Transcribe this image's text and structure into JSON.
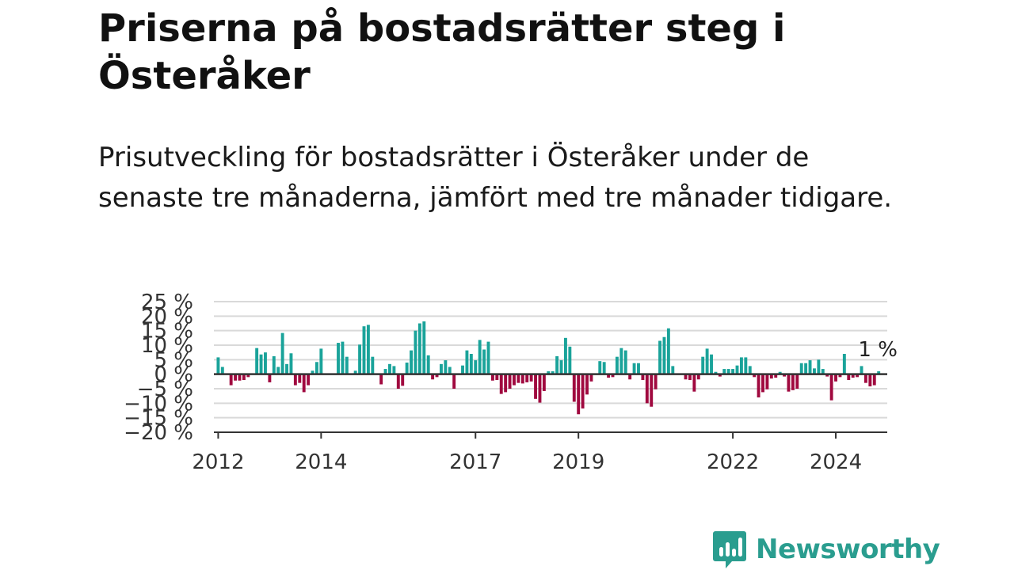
{
  "title": "Priserna på bostadsrätter steg i Österåker",
  "subtitle": "Prisutveckling för bostadsrätter i Österåker under de senaste tre månaderna, jämfört med tre månader tidigare.",
  "brand": {
    "name": "Newsworthy",
    "color": "#2a9d8f",
    "icon": "newsworthy-chart-icon"
  },
  "colors": {
    "positive": "#1aa39a",
    "negative": "#a0093f",
    "grid": "#d9d9d9",
    "zero_line": "#333333"
  },
  "chart_data": {
    "type": "bar",
    "unit": "%",
    "x_start": "2011-12",
    "x_end": "2025-01",
    "ylim": [
      -20,
      25
    ],
    "y_ticks": [
      {
        "value": 25,
        "label": "25 %"
      },
      {
        "value": 20,
        "label": "20 %"
      },
      {
        "value": 15,
        "label": "15 %"
      },
      {
        "value": 10,
        "label": "10 %"
      },
      {
        "value": 5,
        "label": "5 %"
      },
      {
        "value": 0,
        "label": "0 %"
      },
      {
        "value": -5,
        "label": "−5 %"
      },
      {
        "value": -10,
        "label": "−10 %"
      },
      {
        "value": -15,
        "label": "−15 %"
      },
      {
        "value": -20,
        "label": "−20 %"
      }
    ],
    "x_ticks": [
      {
        "date": "2012-01",
        "label": "2012"
      },
      {
        "date": "2014-01",
        "label": "2014"
      },
      {
        "date": "2017-01",
        "label": "2017"
      },
      {
        "date": "2019-01",
        "label": "2019"
      },
      {
        "date": "2022-01",
        "label": "2022"
      },
      {
        "date": "2024-01",
        "label": "2024"
      }
    ],
    "last_value_label": "1 %",
    "grid": true,
    "series": [
      {
        "values": [
          {
            "date": "2012-01",
            "value": 5.8
          },
          {
            "date": "2012-02",
            "value": 2.5
          },
          {
            "date": "2012-03",
            "value": 0
          },
          {
            "date": "2012-04",
            "value": -3.8
          },
          {
            "date": "2012-05",
            "value": -2.2
          },
          {
            "date": "2012-06",
            "value": -2.2
          },
          {
            "date": "2012-07",
            "value": -2.0
          },
          {
            "date": "2012-08",
            "value": -1.0
          },
          {
            "date": "2012-09",
            "value": 0
          },
          {
            "date": "2012-10",
            "value": 9.0
          },
          {
            "date": "2012-11",
            "value": 6.8
          },
          {
            "date": "2012-12",
            "value": 7.5
          },
          {
            "date": "2013-01",
            "value": -2.8
          },
          {
            "date": "2013-02",
            "value": 6.2
          },
          {
            "date": "2013-03",
            "value": 2.5
          },
          {
            "date": "2013-04",
            "value": 14.2
          },
          {
            "date": "2013-05",
            "value": 3.5
          },
          {
            "date": "2013-06",
            "value": 7.2
          },
          {
            "date": "2013-07",
            "value": -3.8
          },
          {
            "date": "2013-08",
            "value": -3.0
          },
          {
            "date": "2013-09",
            "value": -6.2
          },
          {
            "date": "2013-10",
            "value": -3.8
          },
          {
            "date": "2013-11",
            "value": 1.2
          },
          {
            "date": "2013-12",
            "value": 4.2
          },
          {
            "date": "2014-01",
            "value": 8.8
          },
          {
            "date": "2014-02",
            "value": 0
          },
          {
            "date": "2014-03",
            "value": 0
          },
          {
            "date": "2014-04",
            "value": 0
          },
          {
            "date": "2014-05",
            "value": 10.8
          },
          {
            "date": "2014-06",
            "value": 11.2
          },
          {
            "date": "2014-07",
            "value": 6.0
          },
          {
            "date": "2014-08",
            "value": 0
          },
          {
            "date": "2014-09",
            "value": 1.2
          },
          {
            "date": "2014-10",
            "value": 10.2
          },
          {
            "date": "2014-11",
            "value": 16.5
          },
          {
            "date": "2014-12",
            "value": 17.0
          },
          {
            "date": "2015-01",
            "value": 6.0
          },
          {
            "date": "2015-02",
            "value": 0
          },
          {
            "date": "2015-03",
            "value": -3.5
          },
          {
            "date": "2015-04",
            "value": 1.8
          },
          {
            "date": "2015-05",
            "value": 3.5
          },
          {
            "date": "2015-06",
            "value": 2.8
          },
          {
            "date": "2015-07",
            "value": -5.0
          },
          {
            "date": "2015-08",
            "value": -4.0
          },
          {
            "date": "2015-09",
            "value": 4.0
          },
          {
            "date": "2015-10",
            "value": 8.2
          },
          {
            "date": "2015-11",
            "value": 15.0
          },
          {
            "date": "2015-12",
            "value": 17.5
          },
          {
            "date": "2016-01",
            "value": 18.2
          },
          {
            "date": "2016-02",
            "value": 6.5
          },
          {
            "date": "2016-03",
            "value": -1.8
          },
          {
            "date": "2016-04",
            "value": -1.0
          },
          {
            "date": "2016-05",
            "value": 3.5
          },
          {
            "date": "2016-06",
            "value": 4.8
          },
          {
            "date": "2016-07",
            "value": 2.5
          },
          {
            "date": "2016-08",
            "value": -5.0
          },
          {
            "date": "2016-09",
            "value": 0
          },
          {
            "date": "2016-10",
            "value": 3.0
          },
          {
            "date": "2016-11",
            "value": 8.2
          },
          {
            "date": "2016-12",
            "value": 7.0
          },
          {
            "date": "2017-01",
            "value": 4.8
          },
          {
            "date": "2017-02",
            "value": 11.8
          },
          {
            "date": "2017-03",
            "value": 8.5
          },
          {
            "date": "2017-04",
            "value": 11.2
          },
          {
            "date": "2017-05",
            "value": -2.2
          },
          {
            "date": "2017-06",
            "value": -2.0
          },
          {
            "date": "2017-07",
            "value": -6.8
          },
          {
            "date": "2017-08",
            "value": -6.2
          },
          {
            "date": "2017-09",
            "value": -5.0
          },
          {
            "date": "2017-10",
            "value": -3.8
          },
          {
            "date": "2017-11",
            "value": -3.0
          },
          {
            "date": "2017-12",
            "value": -3.2
          },
          {
            "date": "2018-01",
            "value": -2.8
          },
          {
            "date": "2018-02",
            "value": -2.5
          },
          {
            "date": "2018-03",
            "value": -8.5
          },
          {
            "date": "2018-04",
            "value": -9.8
          },
          {
            "date": "2018-05",
            "value": -5.8
          },
          {
            "date": "2018-06",
            "value": 1.0
          },
          {
            "date": "2018-07",
            "value": 1.0
          },
          {
            "date": "2018-08",
            "value": 6.2
          },
          {
            "date": "2018-09",
            "value": 4.8
          },
          {
            "date": "2018-10",
            "value": 12.5
          },
          {
            "date": "2018-11",
            "value": 9.5
          },
          {
            "date": "2018-12",
            "value": -9.5
          },
          {
            "date": "2019-01",
            "value": -13.8
          },
          {
            "date": "2019-02",
            "value": -11.8
          },
          {
            "date": "2019-03",
            "value": -7.0
          },
          {
            "date": "2019-04",
            "value": -2.5
          },
          {
            "date": "2019-05",
            "value": 0
          },
          {
            "date": "2019-06",
            "value": 4.5
          },
          {
            "date": "2019-07",
            "value": 4.2
          },
          {
            "date": "2019-08",
            "value": -1.2
          },
          {
            "date": "2019-09",
            "value": -1.0
          },
          {
            "date": "2019-10",
            "value": 6.0
          },
          {
            "date": "2019-11",
            "value": 9.0
          },
          {
            "date": "2019-12",
            "value": 8.2
          },
          {
            "date": "2020-01",
            "value": -1.8
          },
          {
            "date": "2020-02",
            "value": 3.8
          },
          {
            "date": "2020-03",
            "value": 3.8
          },
          {
            "date": "2020-04",
            "value": -2.0
          },
          {
            "date": "2020-05",
            "value": -10.0
          },
          {
            "date": "2020-06",
            "value": -11.2
          },
          {
            "date": "2020-07",
            "value": -5.2
          },
          {
            "date": "2020-08",
            "value": 11.5
          },
          {
            "date": "2020-09",
            "value": 12.8
          },
          {
            "date": "2020-10",
            "value": 15.8
          },
          {
            "date": "2020-11",
            "value": 2.8
          },
          {
            "date": "2020-12",
            "value": 0
          },
          {
            "date": "2021-01",
            "value": 0
          },
          {
            "date": "2021-02",
            "value": -1.8
          },
          {
            "date": "2021-03",
            "value": -2.0
          },
          {
            "date": "2021-04",
            "value": -6.0
          },
          {
            "date": "2021-05",
            "value": -1.8
          },
          {
            "date": "2021-06",
            "value": 6.0
          },
          {
            "date": "2021-07",
            "value": 8.8
          },
          {
            "date": "2021-08",
            "value": 6.8
          },
          {
            "date": "2021-09",
            "value": 0.8
          },
          {
            "date": "2021-10",
            "value": -0.8
          },
          {
            "date": "2021-11",
            "value": 1.8
          },
          {
            "date": "2021-12",
            "value": 1.8
          },
          {
            "date": "2022-01",
            "value": 1.8
          },
          {
            "date": "2022-02",
            "value": 3.0
          },
          {
            "date": "2022-03",
            "value": 5.8
          },
          {
            "date": "2022-04",
            "value": 5.8
          },
          {
            "date": "2022-05",
            "value": 2.8
          },
          {
            "date": "2022-06",
            "value": -1.0
          },
          {
            "date": "2022-07",
            "value": -8.0
          },
          {
            "date": "2022-08",
            "value": -6.2
          },
          {
            "date": "2022-09",
            "value": -5.2
          },
          {
            "date": "2022-10",
            "value": -1.5
          },
          {
            "date": "2022-11",
            "value": -1.2
          },
          {
            "date": "2022-12",
            "value": 0.8
          },
          {
            "date": "2023-01",
            "value": -0.8
          },
          {
            "date": "2023-02",
            "value": -6.0
          },
          {
            "date": "2023-03",
            "value": -5.5
          },
          {
            "date": "2023-04",
            "value": -5.0
          },
          {
            "date": "2023-05",
            "value": 3.8
          },
          {
            "date": "2023-06",
            "value": 3.8
          },
          {
            "date": "2023-07",
            "value": 4.8
          },
          {
            "date": "2023-08",
            "value": 2.0
          },
          {
            "date": "2023-09",
            "value": 5.0
          },
          {
            "date": "2023-10",
            "value": 1.8
          },
          {
            "date": "2023-11",
            "value": -0.8
          },
          {
            "date": "2023-12",
            "value": -9.0
          },
          {
            "date": "2024-01",
            "value": -2.5
          },
          {
            "date": "2024-02",
            "value": -1.0
          },
          {
            "date": "2024-03",
            "value": 7.0
          },
          {
            "date": "2024-04",
            "value": -2.0
          },
          {
            "date": "2024-05",
            "value": -1.2
          },
          {
            "date": "2024-06",
            "value": -1.0
          },
          {
            "date": "2024-07",
            "value": 2.8
          },
          {
            "date": "2024-08",
            "value": -3.0
          },
          {
            "date": "2024-09",
            "value": -4.2
          },
          {
            "date": "2024-10",
            "value": -3.8
          },
          {
            "date": "2024-11",
            "value": 1.0
          }
        ]
      }
    ]
  }
}
